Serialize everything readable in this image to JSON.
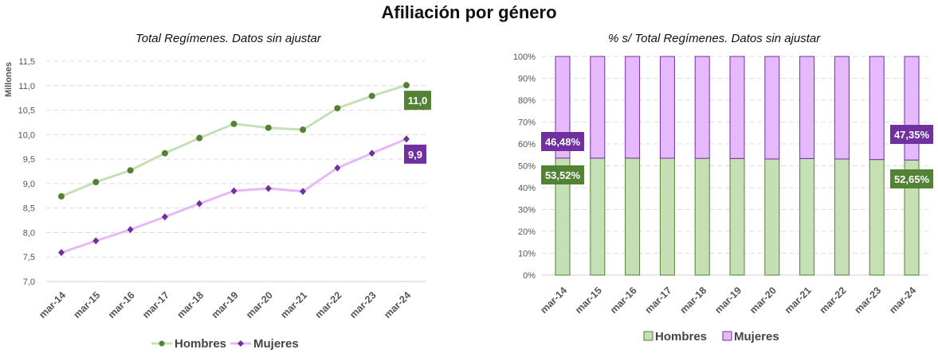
{
  "title": "Afiliación por género",
  "chart_data": [
    {
      "type": "line",
      "title": "Total Regímenes. Datos sin ajustar",
      "ylabel": "Millones",
      "ylim": [
        7.0,
        11.5
      ],
      "yticks": [
        "7,0",
        "7,5",
        "8,0",
        "8,5",
        "9,0",
        "9,5",
        "10,0",
        "10,5",
        "11,0",
        "11,5"
      ],
      "grid": true,
      "legend": "bottom",
      "categories": [
        "mar-14",
        "mar-15",
        "mar-16",
        "mar-17",
        "mar-18",
        "mar-19",
        "mar-20",
        "mar-21",
        "mar-22",
        "mar-23",
        "mar-24"
      ],
      "series": [
        {
          "name": "Hombres",
          "color": "#548235",
          "line": "#c5e0b4",
          "marker": "circle",
          "values": [
            8.74,
            9.03,
            9.27,
            9.62,
            9.93,
            10.22,
            10.14,
            10.1,
            10.54,
            10.79,
            11.01
          ],
          "last_label": "11,0"
        },
        {
          "name": "Mujeres",
          "color": "#7030a0",
          "line": "#e6b9f5",
          "marker": "diamond",
          "values": [
            7.59,
            7.83,
            8.06,
            8.32,
            8.59,
            8.85,
            8.9,
            8.84,
            9.32,
            9.62,
            9.91
          ],
          "last_label": "9,9"
        }
      ]
    },
    {
      "type": "bar",
      "stacked": true,
      "title": "% s/ Total Regímenes. Datos sin ajustar",
      "ylim": [
        0,
        100
      ],
      "yticks": [
        "0%",
        "10%",
        "20%",
        "30%",
        "40%",
        "50%",
        "60%",
        "70%",
        "80%",
        "90%",
        "100%"
      ],
      "grid": true,
      "legend": "bottom",
      "categories": [
        "mar-14",
        "mar-15",
        "mar-16",
        "mar-17",
        "mar-18",
        "mar-19",
        "mar-20",
        "mar-21",
        "mar-22",
        "mar-23",
        "mar-24"
      ],
      "series": [
        {
          "name": "Hombres",
          "color": "#c5e0b4",
          "label_color": "#548235",
          "values": [
            53.52,
            53.5,
            53.5,
            53.45,
            53.4,
            53.35,
            53.1,
            53.3,
            53.1,
            52.85,
            52.65
          ],
          "first_label": "53,52%",
          "last_label": "52,65%"
        },
        {
          "name": "Mujeres",
          "color": "#e6b9ff",
          "label_color": "#7030a0",
          "values": [
            46.48,
            46.5,
            46.5,
            46.55,
            46.6,
            46.65,
            46.9,
            46.7,
            46.9,
            47.15,
            47.35
          ],
          "first_label": "46,48%",
          "last_label": "47,35%"
        }
      ]
    }
  ]
}
